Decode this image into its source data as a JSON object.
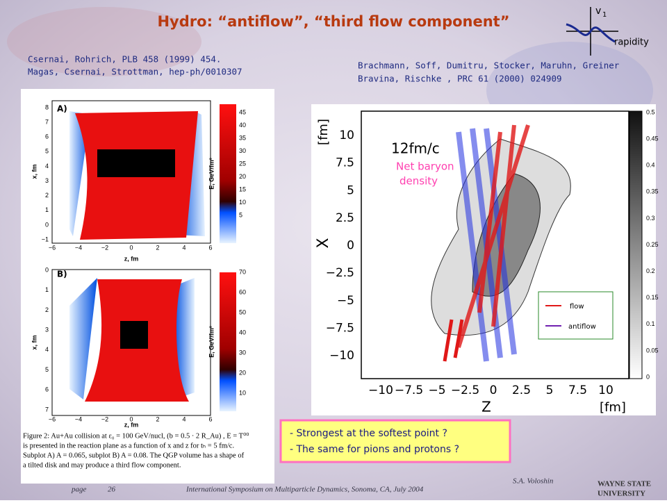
{
  "title": "Hydro: “antiflow”, “third flow component”",
  "inset": {
    "v1": "v",
    "v1_sub": "1",
    "x_label": "rapidity"
  },
  "refs_left": [
    "Csernai, Rohrich, PLB 458 (1999) 454.",
    "Magas, Csernai, Strottman, hep-ph/0010307"
  ],
  "refs_right": [
    "Brachmann, Soff, Dumitru, Stocker, Maruhn, Greiner",
    "Bravina, Rischke , PRC 61 (2000) 024909"
  ],
  "panel_a": {
    "label": "A)",
    "x_label": "z, fm",
    "y_label": "x, fm",
    "xticks": [
      "−6",
      "−4",
      "−2",
      "0",
      "2",
      "4",
      "6"
    ],
    "yticks": [
      "8",
      "7",
      "6",
      "5",
      "4",
      "3",
      "2",
      "1",
      "0",
      "−1"
    ],
    "colorbar_label": "E, GeV/fm³",
    "colorbar_ticks": [
      "45",
      "40",
      "35",
      "30",
      "25",
      "20",
      "15",
      "10",
      "5"
    ]
  },
  "panel_b": {
    "label": "B)",
    "x_label": "z, fm",
    "y_label": "x, fm",
    "xticks": [
      "−6",
      "−4",
      "−2",
      "0",
      "2",
      "4",
      "6"
    ],
    "yticks": [
      "0",
      "1",
      "2",
      "3",
      "4",
      "5",
      "6",
      "7"
    ],
    "colorbar_label": "E, GeV/fm³",
    "colorbar_ticks": [
      "70",
      "60",
      "50",
      "40",
      "30",
      "20",
      "10"
    ]
  },
  "caption": [
    "Figure 2: Au+Au collision at ε₀ = 100 GeV/nucl, (b = 0.5 · 2 R_Au) , E = T⁰⁰",
    "is presented in the reaction plane as a function of x and z for tₕ = 5 fm/c.",
    "Subplot A) A = 0.065, subplot B) A = 0.08. The QGP volume has a shape of",
    "a tilted disk and may produce a third flow component."
  ],
  "right_plot": {
    "time": "12fm/c",
    "density_label": [
      "Net baryon",
      "density"
    ],
    "y_label": "X",
    "y_unit": "[fm]",
    "x_label": "Z",
    "x_unit": "[fm]",
    "yticks": [
      "10",
      "7.5",
      "5",
      "2.5",
      "0",
      "−2.5",
      "−5",
      "−7.5",
      "−10"
    ],
    "xticks": [
      "−10",
      "−7.5",
      "−5",
      "−2.5",
      "0",
      "2.5",
      "5",
      "7.5",
      "10"
    ],
    "colorbar_ticks": [
      "0.5",
      "0.45",
      "0.4",
      "0.35",
      "0.3",
      "0.25",
      "0.2",
      "0.15",
      "0.1",
      "0.05",
      "0"
    ],
    "legend": [
      "flow",
      "antiflow"
    ]
  },
  "notes": [
    "- Strongest at the softest point ?",
    "- The same for pions and protons ?"
  ],
  "footer": {
    "page_word": "page",
    "page_number": "26",
    "event": "International Symposium on Multiparticle Dynamics, Sonoma, CA, July 2004",
    "author": "S.A. Voloshin",
    "logo": [
      "WAYNE STATE",
      "UNIVERSITY"
    ]
  }
}
